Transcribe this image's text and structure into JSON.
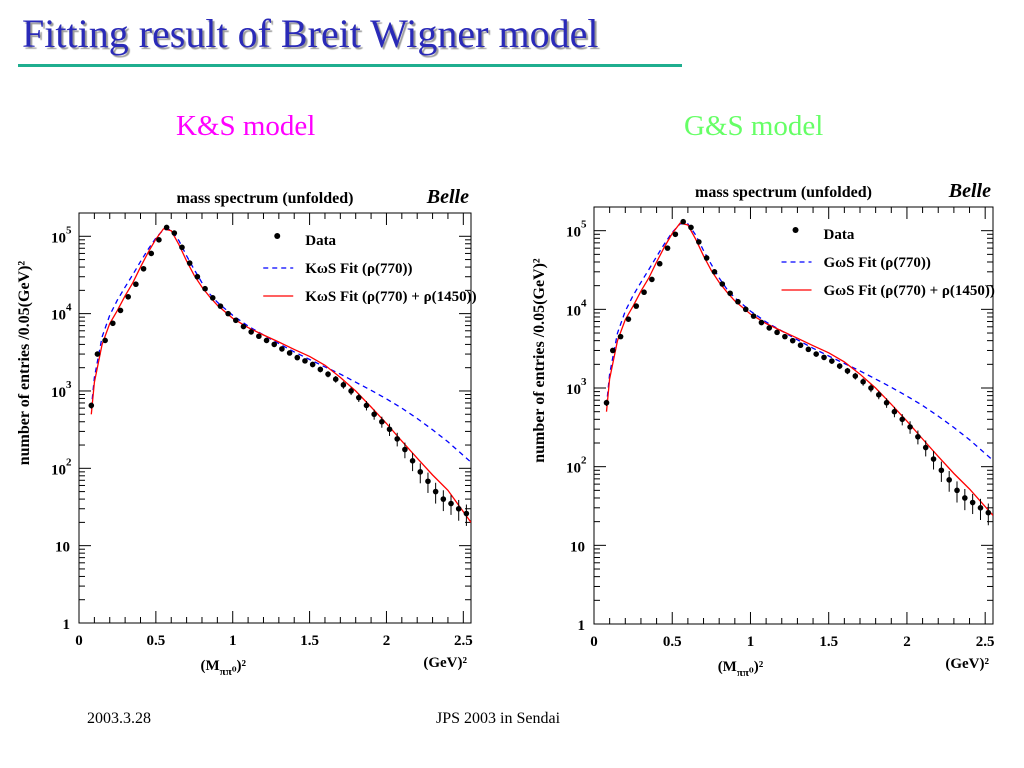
{
  "slide": {
    "title": "Fitting result of Breit Wigner model",
    "footer_date": "2003.3.28",
    "footer_conference": "JPS 2003 in Sendai"
  },
  "chart_data": [
    {
      "type": "scatter",
      "model_label": "K&S model",
      "model_label_color": "#ff00ff",
      "title": "mass spectrum (unfolded)",
      "watermark": "Belle",
      "xlabel_main": "(M",
      "xlabel_sub": "ππ⁰",
      "xlabel_tail": ")²",
      "xunit": "(GeV)²",
      "ylabel": "number of entries  /0.05(GeV)²",
      "xlim": [
        0,
        2.55
      ],
      "ylim": [
        1,
        200000
      ],
      "yscale": "log",
      "x_ticks": [
        "0",
        "0.5",
        "1",
        "1.5",
        "2",
        "2.5"
      ],
      "y_ticks": [
        {
          "base": "1",
          "exp": ""
        },
        {
          "base": "10",
          "exp": ""
        },
        {
          "base": "10",
          "exp": "2"
        },
        {
          "base": "10",
          "exp": "3"
        },
        {
          "base": "10",
          "exp": "4"
        },
        {
          "base": "10",
          "exp": "5"
        }
      ],
      "legend_position": "top-right",
      "series": [
        {
          "name": "Data",
          "style": "points",
          "color": "#000000",
          "x": [
            0.08,
            0.12,
            0.17,
            0.22,
            0.27,
            0.32,
            0.37,
            0.42,
            0.47,
            0.52,
            0.57,
            0.62,
            0.67,
            0.72,
            0.77,
            0.82,
            0.87,
            0.92,
            0.97,
            1.02,
            1.07,
            1.12,
            1.17,
            1.22,
            1.27,
            1.32,
            1.37,
            1.42,
            1.47,
            1.52,
            1.57,
            1.62,
            1.67,
            1.72,
            1.77,
            1.82,
            1.87,
            1.92,
            1.97,
            2.02,
            2.07,
            2.12,
            2.17,
            2.22,
            2.27,
            2.32,
            2.37,
            2.42,
            2.47,
            2.52
          ],
          "y": [
            650,
            3000,
            4500,
            7500,
            11000,
            16500,
            24000,
            38000,
            60000,
            90000,
            130000,
            110000,
            72000,
            45000,
            30000,
            21000,
            16000,
            12500,
            10000,
            8200,
            6800,
            5800,
            5100,
            4500,
            4000,
            3500,
            3100,
            2700,
            2450,
            2200,
            1900,
            1650,
            1420,
            1200,
            1000,
            820,
            650,
            500,
            400,
            320,
            240,
            175,
            125,
            90,
            68,
            50,
            40,
            35,
            30,
            26
          ],
          "y_err": [
            60,
            200,
            250,
            350,
            450,
            600,
            700,
            900,
            1200,
            1500,
            1800,
            1600,
            1300,
            1000,
            800,
            650,
            550,
            480,
            420,
            380,
            340,
            310,
            290,
            270,
            250,
            230,
            210,
            200,
            185,
            175,
            160,
            150,
            140,
            130,
            115,
            100,
            90,
            75,
            65,
            58,
            48,
            40,
            33,
            26,
            20,
            15,
            12,
            10,
            9,
            8
          ]
        },
        {
          "name": "KωS Fit (ρ(770))",
          "style": "dashed",
          "color": "#0000ff",
          "x": [
            0.08,
            0.1,
            0.15,
            0.2,
            0.25,
            0.3,
            0.35,
            0.4,
            0.45,
            0.5,
            0.55,
            0.6,
            0.65,
            0.7,
            0.75,
            0.8,
            0.85,
            0.9,
            1.0,
            1.1,
            1.2,
            1.3,
            1.4,
            1.5,
            1.6,
            1.7,
            1.8,
            1.9,
            2.0,
            2.1,
            2.2,
            2.3,
            2.4,
            2.55
          ],
          "y": [
            600,
            1500,
            5000,
            9500,
            15000,
            22000,
            32000,
            47000,
            68000,
            95000,
            122000,
            122000,
            88000,
            56000,
            37000,
            25000,
            18000,
            14000,
            9500,
            6900,
            5300,
            4100,
            3200,
            2550,
            2050,
            1650,
            1300,
            1020,
            790,
            600,
            440,
            315,
            220,
            120
          ]
        },
        {
          "name": "KωS Fit (ρ(770) + ρ(1450))",
          "style": "solid",
          "color": "#ff0000",
          "x": [
            0.08,
            0.1,
            0.15,
            0.2,
            0.25,
            0.3,
            0.35,
            0.4,
            0.45,
            0.5,
            0.55,
            0.6,
            0.65,
            0.7,
            0.75,
            0.8,
            0.85,
            0.9,
            1.0,
            1.1,
            1.2,
            1.3,
            1.4,
            1.5,
            1.6,
            1.7,
            1.8,
            1.9,
            2.0,
            2.1,
            2.2,
            2.3,
            2.4,
            2.55
          ],
          "y": [
            500,
            1300,
            4000,
            7400,
            11000,
            17000,
            25000,
            40000,
            62000,
            92000,
            125000,
            118000,
            78000,
            48000,
            31000,
            22000,
            16500,
            12800,
            8700,
            6600,
            5300,
            4300,
            3450,
            2800,
            2150,
            1500,
            1000,
            620,
            380,
            225,
            135,
            82,
            52,
            20
          ]
        }
      ]
    },
    {
      "type": "scatter",
      "model_label": "G&S model",
      "model_label_color": "#66ff66",
      "title": "mass spectrum (unfolded)",
      "watermark": "Belle",
      "xlabel_main": "(M",
      "xlabel_sub": "ππ⁰",
      "xlabel_tail": ")²",
      "xunit": "(GeV)²",
      "ylabel": "number of entries  /0.05(GeV)²",
      "xlim": [
        0,
        2.55
      ],
      "ylim": [
        1,
        200000
      ],
      "yscale": "log",
      "x_ticks": [
        "0",
        "0.5",
        "1",
        "1.5",
        "2",
        "2.5"
      ],
      "y_ticks": [
        {
          "base": "1",
          "exp": ""
        },
        {
          "base": "10",
          "exp": ""
        },
        {
          "base": "10",
          "exp": "2"
        },
        {
          "base": "10",
          "exp": "3"
        },
        {
          "base": "10",
          "exp": "4"
        },
        {
          "base": "10",
          "exp": "5"
        }
      ],
      "legend_position": "top-right",
      "series": [
        {
          "name": "Data",
          "style": "points",
          "color": "#000000",
          "x": [
            0.08,
            0.12,
            0.17,
            0.22,
            0.27,
            0.32,
            0.37,
            0.42,
            0.47,
            0.52,
            0.57,
            0.62,
            0.67,
            0.72,
            0.77,
            0.82,
            0.87,
            0.92,
            0.97,
            1.02,
            1.07,
            1.12,
            1.17,
            1.22,
            1.27,
            1.32,
            1.37,
            1.42,
            1.47,
            1.52,
            1.57,
            1.62,
            1.67,
            1.72,
            1.77,
            1.82,
            1.87,
            1.92,
            1.97,
            2.02,
            2.07,
            2.12,
            2.17,
            2.22,
            2.27,
            2.32,
            2.37,
            2.42,
            2.47,
            2.52
          ],
          "y": [
            650,
            3000,
            4500,
            7500,
            11000,
            16500,
            24000,
            38000,
            60000,
            90000,
            130000,
            110000,
            72000,
            45000,
            30000,
            21000,
            16000,
            12500,
            10000,
            8200,
            6800,
            5800,
            5100,
            4500,
            4000,
            3500,
            3100,
            2700,
            2450,
            2200,
            1900,
            1650,
            1420,
            1200,
            1000,
            820,
            650,
            500,
            400,
            320,
            240,
            175,
            125,
            90,
            68,
            50,
            40,
            35,
            30,
            26
          ],
          "y_err": [
            60,
            200,
            250,
            350,
            450,
            600,
            700,
            900,
            1200,
            1500,
            1800,
            1600,
            1300,
            1000,
            800,
            650,
            550,
            480,
            420,
            380,
            340,
            310,
            290,
            270,
            250,
            230,
            210,
            200,
            185,
            175,
            160,
            150,
            140,
            130,
            115,
            100,
            90,
            75,
            65,
            58,
            48,
            40,
            33,
            26,
            20,
            15,
            12,
            10,
            9,
            8
          ]
        },
        {
          "name": "GωS Fit (ρ(770))",
          "style": "dashed",
          "color": "#0000ff",
          "x": [
            0.08,
            0.1,
            0.15,
            0.2,
            0.25,
            0.3,
            0.35,
            0.4,
            0.45,
            0.5,
            0.55,
            0.6,
            0.65,
            0.7,
            0.75,
            0.8,
            0.85,
            0.9,
            1.0,
            1.1,
            1.2,
            1.3,
            1.4,
            1.5,
            1.6,
            1.7,
            1.8,
            1.9,
            2.0,
            2.1,
            2.2,
            2.3,
            2.4,
            2.55
          ],
          "y": [
            600,
            1500,
            5000,
            9500,
            15000,
            22000,
            32000,
            47000,
            68000,
            95000,
            122000,
            122000,
            88000,
            56000,
            37000,
            25000,
            18000,
            14000,
            9500,
            6900,
            5300,
            4100,
            3200,
            2550,
            2050,
            1650,
            1300,
            1020,
            790,
            600,
            440,
            315,
            220,
            120
          ]
        },
        {
          "name": "GωS Fit (ρ(770) + ρ(1450))",
          "style": "solid",
          "color": "#ff0000",
          "x": [
            0.08,
            0.1,
            0.15,
            0.2,
            0.25,
            0.3,
            0.35,
            0.4,
            0.45,
            0.5,
            0.55,
            0.6,
            0.65,
            0.7,
            0.75,
            0.8,
            0.85,
            0.9,
            1.0,
            1.1,
            1.2,
            1.3,
            1.4,
            1.5,
            1.6,
            1.7,
            1.8,
            1.9,
            2.0,
            2.1,
            2.2,
            2.3,
            2.4,
            2.55
          ],
          "y": [
            500,
            1300,
            4000,
            7400,
            11000,
            17000,
            25000,
            40000,
            62000,
            92000,
            125000,
            118000,
            78000,
            48000,
            31000,
            22000,
            16500,
            12800,
            8700,
            6600,
            5300,
            4300,
            3450,
            2800,
            2150,
            1500,
            1000,
            620,
            380,
            225,
            135,
            82,
            52,
            24
          ]
        }
      ]
    }
  ]
}
